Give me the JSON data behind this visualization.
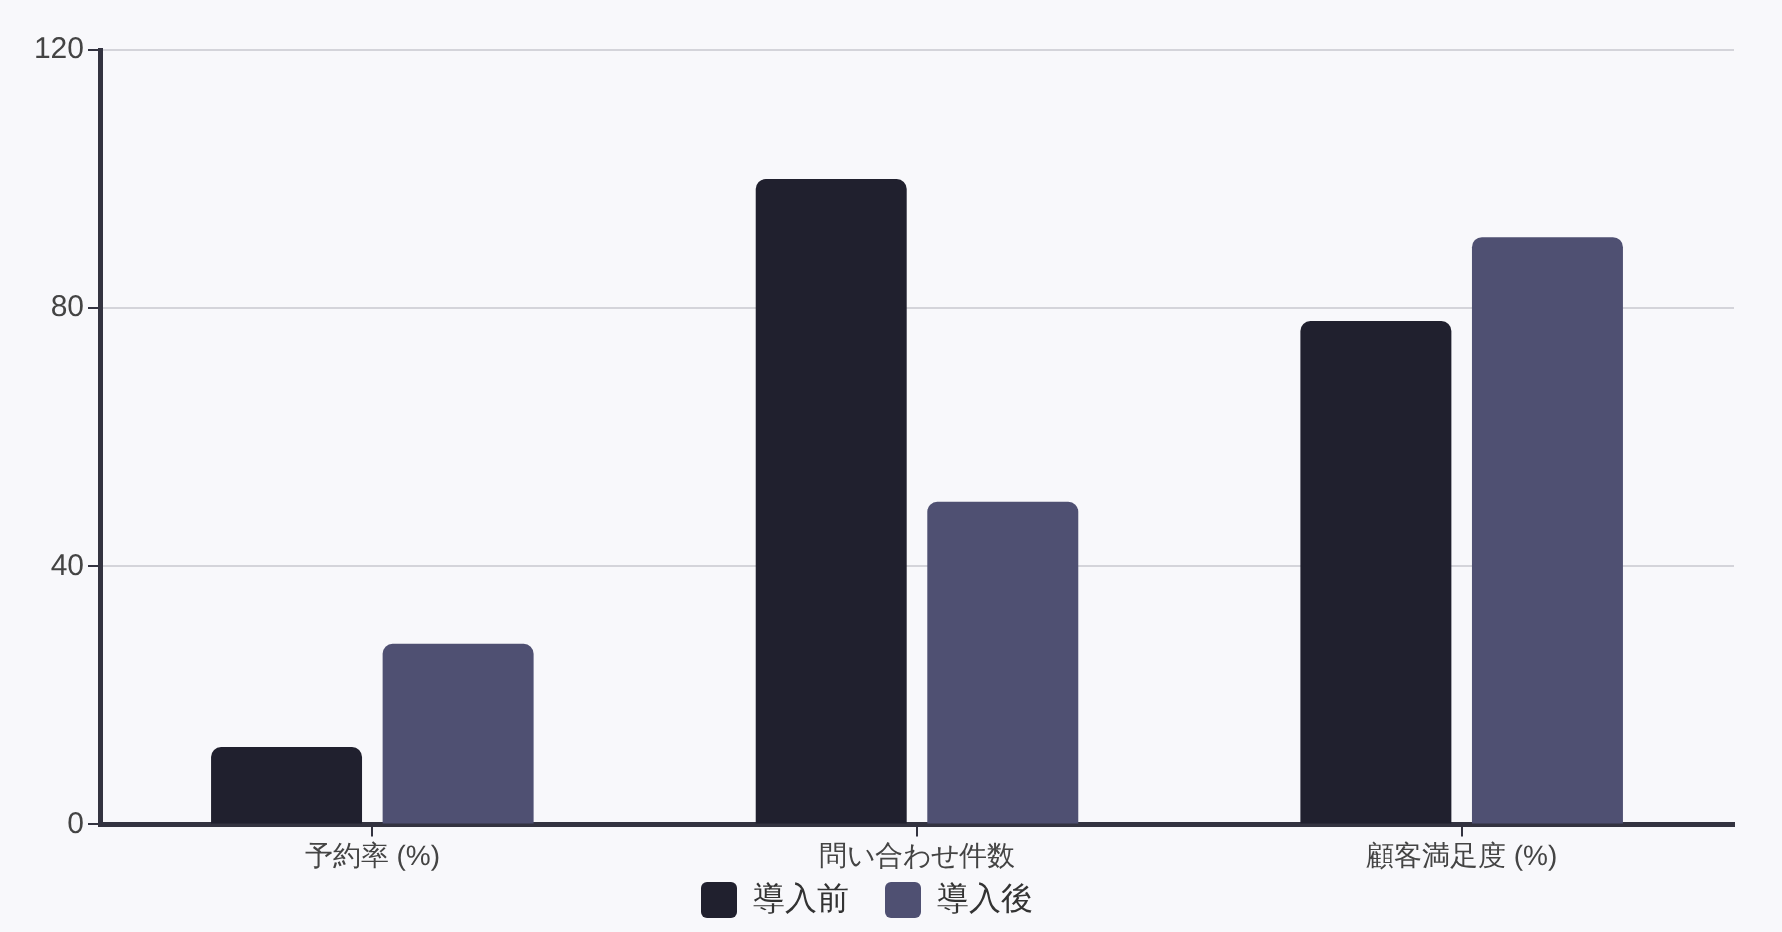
{
  "chart_data": {
    "type": "bar",
    "categories": [
      "予約率 (%)",
      "問い合わせ件数",
      "顧客満足度 (%)"
    ],
    "series": [
      {
        "name": "導入前",
        "color": "#20202e",
        "values": [
          12,
          100,
          78
        ]
      },
      {
        "name": "導入後",
        "color": "#4f5072",
        "values": [
          28,
          50,
          91
        ]
      }
    ],
    "ylim": [
      0,
      120
    ],
    "yticks": [
      0,
      40,
      80,
      120
    ],
    "grid": "y",
    "legend": "bottom"
  }
}
